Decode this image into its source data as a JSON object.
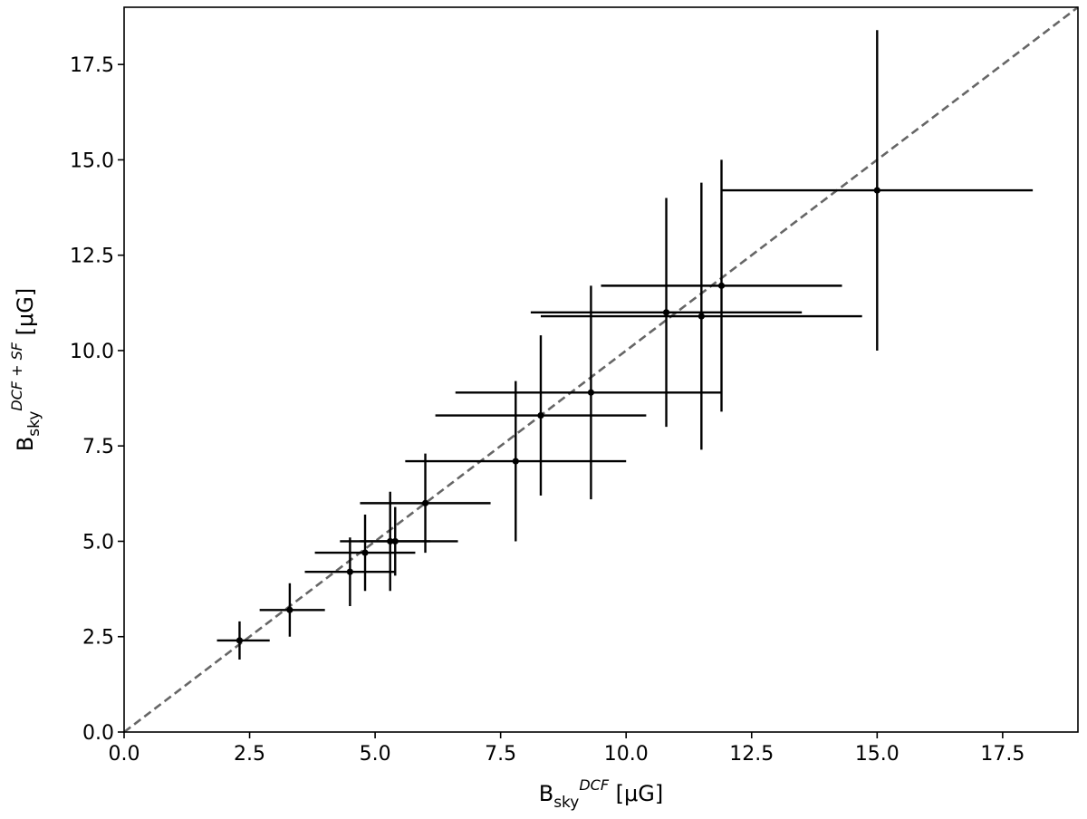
{
  "chart_data": {
    "type": "scatter",
    "title": "",
    "xlabel": {
      "base": "B",
      "sub": "sky",
      "sup": "DCF",
      "unit": " [μG]"
    },
    "ylabel": {
      "base": "B",
      "sub": "sky",
      "sup": "DCF + SF",
      "unit": " [μG]"
    },
    "xlim": [
      0,
      19
    ],
    "ylim": [
      0,
      19
    ],
    "xticks": [
      "0.0",
      "2.5",
      "5.0",
      "7.5",
      "10.0",
      "12.5",
      "15.0",
      "17.5"
    ],
    "yticks": [
      "0.0",
      "2.5",
      "5.0",
      "7.5",
      "10.0",
      "12.5",
      "15.0",
      "17.5"
    ],
    "grid": false,
    "reference_line": {
      "style": "dashed",
      "color": "#666666",
      "from": [
        0,
        0
      ],
      "to": [
        19,
        19
      ]
    },
    "marker_color": "#000000",
    "points": [
      {
        "x": 2.3,
        "y": 2.4,
        "xerr": [
          0.45,
          0.6
        ],
        "yerr": [
          0.5,
          0.5
        ]
      },
      {
        "x": 3.3,
        "y": 3.2,
        "xerr": [
          0.6,
          0.7
        ],
        "yerr": [
          0.7,
          0.7
        ]
      },
      {
        "x": 4.5,
        "y": 4.2,
        "xerr": [
          0.9,
          0.9
        ],
        "yerr": [
          0.9,
          0.9
        ]
      },
      {
        "x": 4.8,
        "y": 4.7,
        "xerr": [
          1.0,
          1.0
        ],
        "yerr": [
          1.0,
          1.0
        ]
      },
      {
        "x": 5.3,
        "y": 5.0,
        "xerr": [
          1.0,
          1.35
        ],
        "yerr": [
          1.3,
          1.3
        ]
      },
      {
        "x": 5.4,
        "y": 5.0,
        "xerr": [
          0.7,
          0.7
        ],
        "yerr": [
          0.9,
          0.9
        ]
      },
      {
        "x": 6.0,
        "y": 6.0,
        "xerr": [
          1.3,
          1.3
        ],
        "yerr": [
          1.3,
          1.3
        ]
      },
      {
        "x": 7.8,
        "y": 7.1,
        "xerr": [
          2.2,
          2.2
        ],
        "yerr": [
          2.1,
          2.1
        ]
      },
      {
        "x": 8.3,
        "y": 8.3,
        "xerr": [
          2.1,
          2.1
        ],
        "yerr": [
          2.1,
          2.1
        ]
      },
      {
        "x": 9.3,
        "y": 8.9,
        "xerr": [
          2.7,
          2.6
        ],
        "yerr": [
          2.8,
          2.8
        ]
      },
      {
        "x": 10.8,
        "y": 11.0,
        "xerr": [
          2.7,
          2.7
        ],
        "yerr": [
          3.0,
          3.0
        ]
      },
      {
        "x": 11.5,
        "y": 10.9,
        "xerr": [
          3.2,
          3.2
        ],
        "yerr": [
          3.5,
          3.5
        ]
      },
      {
        "x": 11.9,
        "y": 11.7,
        "xerr": [
          2.4,
          2.4
        ],
        "yerr": [
          3.3,
          3.3
        ]
      },
      {
        "x": 15.0,
        "y": 14.2,
        "xerr": [
          3.1,
          3.1
        ],
        "yerr": [
          4.2,
          4.2
        ]
      }
    ]
  }
}
